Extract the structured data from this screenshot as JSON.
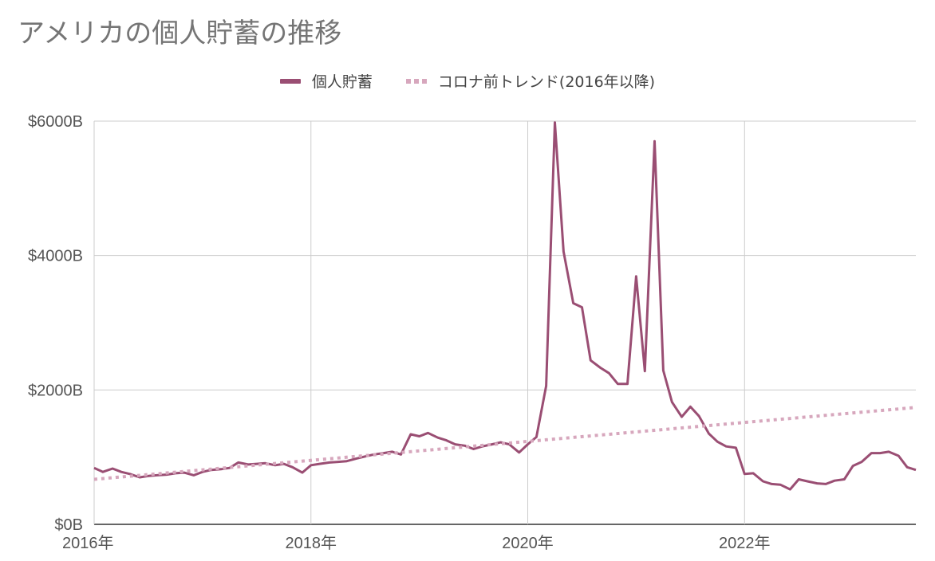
{
  "title": "アメリカの個人貯蓄の推移",
  "colors": {
    "series": "#9a4e73",
    "trend": "#d7a7bd",
    "grid": "#cccccc",
    "axis": "#333333"
  },
  "chart_data": {
    "type": "line",
    "title": "アメリカの個人貯蓄の推移",
    "xlabel": "",
    "ylabel": "",
    "x_range": [
      2016.0,
      2023.58
    ],
    "ylim": [
      0,
      6000
    ],
    "grid": true,
    "legend_position": "top",
    "x_ticks": [
      {
        "x": 2016,
        "label": "2016年"
      },
      {
        "x": 2018,
        "label": "2018年"
      },
      {
        "x": 2020,
        "label": "2020年"
      },
      {
        "x": 2022,
        "label": "2022年"
      }
    ],
    "y_ticks": [
      {
        "y": 0,
        "label": "$0B"
      },
      {
        "y": 2000,
        "label": "$2000B"
      },
      {
        "y": 4000,
        "label": "$4000B"
      },
      {
        "y": 6000,
        "label": "$6000B"
      }
    ],
    "series": [
      {
        "name": "個人貯蓄",
        "style": "solid",
        "x": [
          2016.0,
          2016.08,
          2016.17,
          2016.25,
          2016.33,
          2016.42,
          2016.5,
          2016.58,
          2016.67,
          2016.75,
          2016.83,
          2016.92,
          2017.0,
          2017.08,
          2017.17,
          2017.25,
          2017.33,
          2017.42,
          2017.5,
          2017.58,
          2017.67,
          2017.75,
          2017.83,
          2017.92,
          2018.0,
          2018.08,
          2018.17,
          2018.25,
          2018.33,
          2018.42,
          2018.5,
          2018.58,
          2018.67,
          2018.75,
          2018.83,
          2018.92,
          2019.0,
          2019.08,
          2019.17,
          2019.25,
          2019.33,
          2019.42,
          2019.5,
          2019.58,
          2019.67,
          2019.75,
          2019.83,
          2019.92,
          2020.0,
          2020.08,
          2020.17,
          2020.25,
          2020.33,
          2020.42,
          2020.5,
          2020.58,
          2020.67,
          2020.75,
          2020.83,
          2020.92,
          2021.0,
          2021.08,
          2021.17,
          2021.25,
          2021.33,
          2021.42,
          2021.5,
          2021.58,
          2021.67,
          2021.75,
          2021.83,
          2021.92,
          2022.0,
          2022.08,
          2022.17,
          2022.25,
          2022.33,
          2022.42,
          2022.5,
          2022.58,
          2022.67,
          2022.75,
          2022.83,
          2022.92,
          2023.0,
          2023.08,
          2023.17,
          2023.25,
          2023.33,
          2023.42,
          2023.5,
          2023.58
        ],
        "values": [
          840,
          780,
          830,
          780,
          750,
          700,
          720,
          730,
          740,
          760,
          770,
          730,
          780,
          810,
          820,
          840,
          920,
          890,
          900,
          910,
          880,
          900,
          850,
          770,
          880,
          900,
          920,
          930,
          940,
          980,
          1010,
          1040,
          1060,
          1080,
          1040,
          1340,
          1310,
          1360,
          1290,
          1250,
          1190,
          1170,
          1120,
          1160,
          1190,
          1220,
          1190,
          1070,
          1190,
          1300,
          2060,
          5980,
          4060,
          3290,
          3230,
          2440,
          2330,
          2250,
          2090,
          2090,
          3690,
          2280,
          5700,
          2290,
          1820,
          1600,
          1750,
          1610,
          1350,
          1230,
          1160,
          1140,
          750,
          760,
          640,
          600,
          590,
          520,
          670,
          640,
          610,
          600,
          650,
          670,
          870,
          930,
          1060,
          1060,
          1080,
          1020,
          850,
          810
        ]
      },
      {
        "name": "コロナ前トレンド(2016年以降)",
        "style": "dotted",
        "x": [
          2016.0,
          2023.58
        ],
        "values": [
          670,
          1740
        ]
      }
    ]
  }
}
